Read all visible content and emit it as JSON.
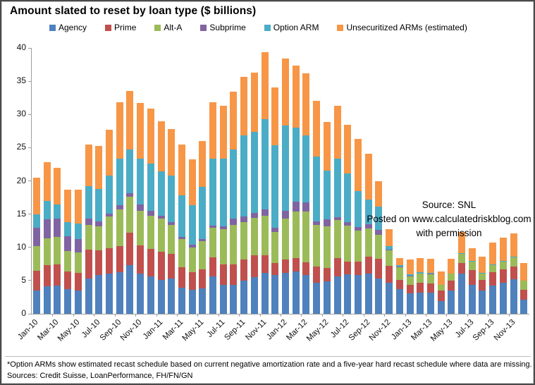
{
  "title": "Amount slated to reset by loan type ($ billions)",
  "annotation": {
    "source": "Source: SNL",
    "posted": "Posted on www.calculatedriskblog.com",
    "permission": "with permission"
  },
  "footnote": "*Option ARMs show estimated recast schedule based on current negative amortization rate and a five-year hard recast schedule where data are missing.",
  "sources_line": "Sources: Credit Suisse, LoanPerformance, FH/FN/GN",
  "axis_colors": {
    "line": "#9d9d9d",
    "text": "#111111"
  },
  "chart_data": {
    "type": "bar",
    "stacked": true,
    "title": "Amount slated to reset by loan type ($ billions)",
    "xlabel": "",
    "ylabel": "",
    "ylim": [
      0,
      40
    ],
    "yticks": [
      0,
      5,
      10,
      15,
      20,
      25,
      30,
      35,
      40
    ],
    "grid": false,
    "legend_position": "top",
    "x_label_interval": 2,
    "categories": [
      "Jan-10",
      "Feb-10",
      "Mar-10",
      "Apr-10",
      "May-10",
      "Jun-10",
      "Jul-10",
      "Aug-10",
      "Sep-10",
      "Oct-10",
      "Nov-10",
      "Dec-10",
      "Jan-11",
      "Feb-11",
      "Mar-11",
      "Apr-11",
      "May-11",
      "Jun-11",
      "Jul-11",
      "Aug-11",
      "Sep-11",
      "Oct-11",
      "Nov-11",
      "Dec-11",
      "Jan-12",
      "Feb-12",
      "Mar-12",
      "Apr-12",
      "May-12",
      "Jun-12",
      "Jul-12",
      "Aug-12",
      "Sep-12",
      "Oct-12",
      "Nov-12",
      "Dec-12",
      "Jan-13",
      "Feb-13",
      "Mar-13",
      "Apr-13",
      "May-13",
      "Jun-13",
      "Jul-13",
      "Aug-13",
      "Sep-13",
      "Oct-13",
      "Nov-13",
      "Dec-13"
    ],
    "series": [
      {
        "name": "Agency",
        "color": "#4F81BD",
        "values": [
          3.5,
          4.1,
          4.2,
          3.7,
          3.5,
          5.3,
          5.8,
          6.0,
          6.3,
          7.3,
          6.0,
          5.6,
          5.1,
          5.3,
          3.9,
          3.6,
          3.8,
          5.6,
          4.3,
          4.4,
          5.0,
          5.5,
          6.2,
          5.8,
          6.2,
          6.4,
          5.8,
          4.7,
          4.9,
          5.6,
          5.9,
          5.8,
          6.0,
          5.3,
          4.7,
          3.7,
          3.1,
          3.2,
          3.2,
          1.9,
          3.5,
          6.0,
          4.4,
          3.5,
          4.2,
          4.7,
          5.2,
          2.1
        ]
      },
      {
        "name": "Prime",
        "color": "#C0504D",
        "values": [
          3.0,
          3.2,
          3.2,
          2.7,
          2.7,
          4.4,
          3.7,
          3.9,
          3.9,
          4.9,
          4.3,
          4.2,
          4.2,
          3.7,
          3.1,
          2.7,
          2.9,
          2.9,
          3.1,
          3.0,
          3.2,
          3.3,
          2.6,
          1.8,
          2.0,
          2.0,
          1.9,
          2.4,
          2.0,
          2.8,
          2.0,
          2.1,
          2.6,
          3.0,
          2.5,
          1.4,
          1.3,
          1.5,
          1.4,
          1.6,
          1.5,
          1.6,
          2.2,
          1.6,
          2.1,
          2.0,
          1.9,
          1.5
        ]
      },
      {
        "name": "Alt-A",
        "color": "#9BBB59",
        "values": [
          3.7,
          4.1,
          4.2,
          3.0,
          3.0,
          3.7,
          3.7,
          4.7,
          5.5,
          5.4,
          5.2,
          5.0,
          5.0,
          4.4,
          4.2,
          3.7,
          4.2,
          4.5,
          5.3,
          6.0,
          5.6,
          5.6,
          6.0,
          4.7,
          6.1,
          7.0,
          7.7,
          6.3,
          6.3,
          5.7,
          5.4,
          4.6,
          4.2,
          3.6,
          2.3,
          1.9,
          1.2,
          1.3,
          1.3,
          0.9,
          1.0,
          1.4,
          1.3,
          0.9,
          1.0,
          1.2,
          1.4,
          1.4
        ]
      },
      {
        "name": "Subprime",
        "color": "#8064A2",
        "values": [
          2.7,
          2.8,
          2.7,
          2.3,
          2.1,
          0.9,
          0.7,
          0.5,
          0.6,
          0.6,
          0.9,
          0.7,
          0.5,
          0.4,
          0.4,
          0.4,
          0.4,
          0.3,
          0.5,
          0.9,
          0.8,
          0.8,
          0.9,
          0.7,
          1.2,
          1.5,
          1.4,
          0.5,
          1.0,
          0.4,
          0.5,
          0.6,
          0.7,
          0.7,
          0.2,
          0.1,
          0.1,
          0.1,
          0.1,
          0,
          0,
          0,
          0,
          0,
          0,
          0,
          0,
          0
        ]
      },
      {
        "name": "Option ARM",
        "color": "#4BACC6",
        "values": [
          2.1,
          2.8,
          2.1,
          2.1,
          2.3,
          4.9,
          4.9,
          5.7,
          7.0,
          6.5,
          7.0,
          7.1,
          6.6,
          7.0,
          6.2,
          5.9,
          7.8,
          10.1,
          10.1,
          10.4,
          12.3,
          12.2,
          13.6,
          12.4,
          12.8,
          11.1,
          10.0,
          9.8,
          7.3,
          8.8,
          7.3,
          5.4,
          3.7,
          3.5,
          0.5,
          0.2,
          0.2,
          0.2,
          0.2,
          0,
          0.1,
          0.1,
          0.1,
          0.2,
          0.1,
          0.1,
          0.1,
          0
        ]
      },
      {
        "name": "Unsecuritized ARMs (estimated)",
        "color": "#F79646",
        "values": [
          5.5,
          5.8,
          5.6,
          4.9,
          5.1,
          6.3,
          6.5,
          6.9,
          8.5,
          8.8,
          8.3,
          8.3,
          7.6,
          7.0,
          7.7,
          6.9,
          6.9,
          8.4,
          8.0,
          8.7,
          8.8,
          8.9,
          10.1,
          8.7,
          10.1,
          9.4,
          9.4,
          8.4,
          7.4,
          8.0,
          7.3,
          7.8,
          6.9,
          3.8,
          2.5,
          1.1,
          2.3,
          2.1,
          2.1,
          2.0,
          2.2,
          3.2,
          1.9,
          2.4,
          3.3,
          3.5,
          3.5,
          2.6
        ]
      }
    ]
  }
}
